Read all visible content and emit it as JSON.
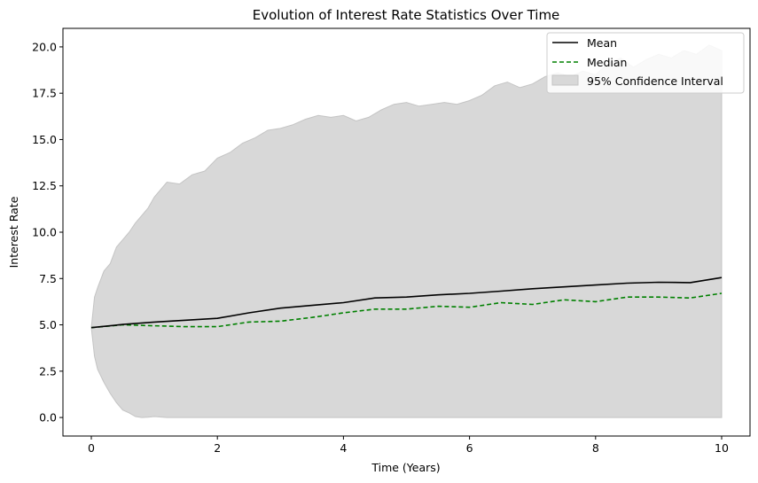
{
  "chart_data": {
    "type": "line",
    "title": "Evolution of Interest Rate Statistics Over Time",
    "xlabel": "Time (Years)",
    "ylabel": "Interest Rate",
    "xlim": [
      -0.45,
      10.45
    ],
    "ylim": [
      -1.0,
      21.0
    ],
    "xticks": [
      0,
      2,
      4,
      6,
      8,
      10
    ],
    "xtick_labels": [
      "0",
      "2",
      "4",
      "6",
      "8",
      "10"
    ],
    "yticks": [
      0.0,
      2.5,
      5.0,
      7.5,
      10.0,
      12.5,
      15.0,
      17.5,
      20.0
    ],
    "ytick_labels": [
      "0.0",
      "2.5",
      "5.0",
      "7.5",
      "10.0",
      "12.5",
      "15.0",
      "17.5",
      "20.0"
    ],
    "grid": false,
    "legend_position": "top-right",
    "colors": {
      "mean": "#000000",
      "median": "#008000",
      "band": "#d8d8d8",
      "band_edge": "#c4c4c4"
    },
    "series": [
      {
        "name": "Mean",
        "style": "solid",
        "x": [
          0,
          0.5,
          1,
          1.5,
          2,
          2.5,
          3,
          3.5,
          4,
          4.5,
          5,
          5.5,
          6,
          6.5,
          7,
          7.5,
          8,
          8.5,
          9,
          9.5,
          10
        ],
        "y": [
          4.85,
          5.02,
          5.15,
          5.25,
          5.35,
          5.65,
          5.9,
          6.05,
          6.2,
          6.45,
          6.5,
          6.62,
          6.7,
          6.82,
          6.95,
          7.05,
          7.15,
          7.25,
          7.3,
          7.28,
          7.55
        ]
      },
      {
        "name": "Median",
        "style": "dashed",
        "x": [
          0,
          0.5,
          1,
          1.5,
          2,
          2.5,
          3,
          3.5,
          4,
          4.5,
          5,
          5.5,
          6,
          6.5,
          7,
          7.5,
          8,
          8.5,
          9,
          9.5,
          10
        ],
        "y": [
          4.85,
          5.0,
          4.95,
          4.9,
          4.9,
          5.15,
          5.2,
          5.4,
          5.65,
          5.85,
          5.85,
          6.0,
          5.95,
          6.2,
          6.1,
          6.35,
          6.25,
          6.5,
          6.5,
          6.45,
          6.7
        ]
      },
      {
        "name": "95% Confidence Interval",
        "type": "band",
        "x": [
          0,
          0.05,
          0.1,
          0.2,
          0.3,
          0.4,
          0.5,
          0.6,
          0.7,
          0.8,
          0.9,
          1.0,
          1.2,
          1.4,
          1.6,
          1.8,
          2.0,
          2.2,
          2.4,
          2.6,
          2.8,
          3.0,
          3.2,
          3.4,
          3.6,
          3.8,
          4.0,
          4.2,
          4.4,
          4.6,
          4.8,
          5.0,
          5.2,
          5.4,
          5.6,
          5.8,
          6.0,
          6.2,
          6.4,
          6.6,
          6.8,
          7.0,
          7.2,
          7.4,
          7.6,
          7.8,
          8.0,
          8.2,
          8.4,
          8.6,
          8.8,
          9.0,
          9.2,
          9.4,
          9.6,
          9.8,
          10.0
        ],
        "lower": [
          4.85,
          3.3,
          2.6,
          1.9,
          1.3,
          0.8,
          0.4,
          0.25,
          0.05,
          0.0,
          0.02,
          0.05,
          0.0,
          0.0,
          0.0,
          0.0,
          0.0,
          0.0,
          0.0,
          0.0,
          0.0,
          0.0,
          0.0,
          0.0,
          0.0,
          0.0,
          0.0,
          0.0,
          0.0,
          0.0,
          0.0,
          0.0,
          0.0,
          0.0,
          0.0,
          0.0,
          0.0,
          0.0,
          0.0,
          0.0,
          0.0,
          0.0,
          0.0,
          0.0,
          0.0,
          0.0,
          0.0,
          0.0,
          0.0,
          0.0,
          0.0,
          0.0,
          0.0,
          0.0,
          0.0,
          0.0,
          0.0
        ],
        "upper": [
          4.85,
          6.5,
          7.0,
          7.9,
          8.3,
          9.2,
          9.6,
          10.0,
          10.5,
          10.9,
          11.3,
          11.9,
          12.7,
          12.6,
          13.1,
          13.3,
          14.0,
          14.3,
          14.8,
          15.1,
          15.5,
          15.6,
          15.8,
          16.1,
          16.3,
          16.2,
          16.3,
          16.0,
          16.2,
          16.6,
          16.9,
          17.0,
          16.8,
          16.9,
          17.0,
          16.9,
          17.1,
          17.4,
          17.9,
          18.1,
          17.8,
          18.0,
          18.4,
          18.6,
          18.4,
          18.7,
          18.5,
          19.1,
          19.4,
          18.9,
          19.3,
          19.6,
          19.4,
          19.8,
          19.6,
          20.1,
          19.8
        ]
      }
    ]
  }
}
